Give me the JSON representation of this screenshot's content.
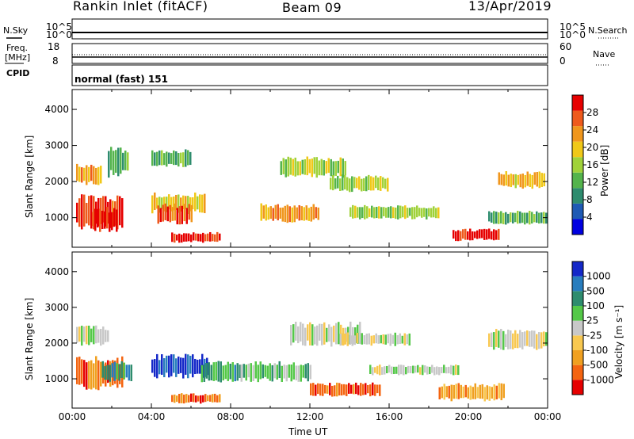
{
  "header": {
    "site": "Rankin Inlet (fitACF)",
    "beam": "Beam 09",
    "date": "13/Apr/2019"
  },
  "nsky_panel": {
    "label_left": "N.Sky",
    "label_right": "N.Search",
    "y_top": "10^5",
    "y_bottom": "10^0",
    "y_top_right": "10^5",
    "y_bottom_right": "10^0"
  },
  "freq_panel": {
    "label_left_1": "Freq.",
    "label_left_2": "[MHz]",
    "label_right": "Nave",
    "y_top": "18",
    "y_bottom": "8",
    "y_top_right": "60",
    "y_bottom_right": "0"
  },
  "cpid": {
    "label": "CPID",
    "mode": "normal (fast) 151"
  },
  "colors": {
    "power": [
      "#0000e0",
      "#1e5ab4",
      "#2e8c6e",
      "#54b44c",
      "#a0d23a",
      "#f0c818",
      "#f0961c",
      "#ee5a1c",
      "#e60000"
    ],
    "velocity": [
      "#e60000",
      "#f46410",
      "#f0a020",
      "#f8c850",
      "#c8c8c8",
      "#54c848",
      "#2e8c6e",
      "#287dbe",
      "#1428c8"
    ]
  },
  "chart_data": [
    {
      "type": "heatmap",
      "name": "power",
      "ylabel": "Slant Range [km]",
      "ylim": [
        180,
        4550
      ],
      "yticks": [
        "1000",
        "2000",
        "3000",
        "4000"
      ],
      "xlim": [
        0,
        24
      ],
      "colorbar": {
        "label": "Power [dB]",
        "ticks": [
          "4",
          "8",
          "12",
          "16",
          "20",
          "24",
          "28"
        ],
        "range": [
          0,
          32
        ]
      },
      "regions": [
        {
          "t0": 0.2,
          "t1": 1.5,
          "r0": 1900,
          "r1": 2500,
          "level": 6
        },
        {
          "t0": 0.2,
          "t1": 2.6,
          "r0": 650,
          "r1": 1650,
          "level": 7
        },
        {
          "t0": 1.0,
          "t1": 2.3,
          "r0": 600,
          "r1": 1300,
          "level": 8
        },
        {
          "t0": 1.8,
          "t1": 2.8,
          "r0": 2100,
          "r1": 3000,
          "level": 3
        },
        {
          "t0": 4.0,
          "t1": 6.7,
          "r0": 1100,
          "r1": 1700,
          "level": 5
        },
        {
          "t0": 4.3,
          "t1": 6.0,
          "r0": 800,
          "r1": 1400,
          "level": 7
        },
        {
          "t0": 4.0,
          "t1": 6.0,
          "r0": 2400,
          "r1": 2900,
          "level": 3
        },
        {
          "t0": 5.0,
          "t1": 7.5,
          "r0": 300,
          "r1": 600,
          "level": 8
        },
        {
          "t0": 9.5,
          "t1": 12.5,
          "r0": 850,
          "r1": 1400,
          "level": 6
        },
        {
          "t0": 10.5,
          "t1": 13.8,
          "r0": 2100,
          "r1": 2700,
          "level": 4
        },
        {
          "t0": 13.0,
          "t1": 16.0,
          "r0": 1700,
          "r1": 2200,
          "level": 4
        },
        {
          "t0": 14.0,
          "t1": 18.5,
          "r0": 950,
          "r1": 1350,
          "level": 4
        },
        {
          "t0": 19.2,
          "t1": 21.5,
          "r0": 350,
          "r1": 700,
          "level": 8
        },
        {
          "t0": 21.5,
          "t1": 23.9,
          "r0": 1800,
          "r1": 2300,
          "level": 5
        },
        {
          "t0": 21.0,
          "t1": 23.9,
          "r0": 800,
          "r1": 1200,
          "level": 3
        }
      ]
    },
    {
      "type": "heatmap",
      "name": "velocity",
      "ylabel": "Slant Range [km]",
      "xlabel": "Time UT",
      "ylim": [
        180,
        4550
      ],
      "yticks": [
        "1000",
        "2000",
        "3000",
        "4000"
      ],
      "xticks": [
        "00:00",
        "04:00",
        "08:00",
        "12:00",
        "16:00",
        "20:00",
        "00:00"
      ],
      "xlim": [
        0,
        24
      ],
      "colorbar": {
        "label": "Velocity [m s⁻¹]",
        "ticks": [
          "1000",
          "500",
          "100",
          "25",
          "-25",
          "-100",
          "-500",
          "-1000"
        ]
      },
      "regions": [
        {
          "t0": 0.2,
          "t1": 1.8,
          "r0": 1900,
          "r1": 2500,
          "level": 4
        },
        {
          "t0": 0.2,
          "t1": 2.6,
          "r0": 650,
          "r1": 1650,
          "level": 1
        },
        {
          "t0": 1.5,
          "t1": 3.0,
          "r0": 900,
          "r1": 1500,
          "level": 6
        },
        {
          "t0": 4.0,
          "t1": 6.8,
          "r0": 1000,
          "r1": 1700,
          "level": 8
        },
        {
          "t0": 6.5,
          "t1": 8.5,
          "r0": 900,
          "r1": 1500,
          "level": 6
        },
        {
          "t0": 8.5,
          "t1": 12.0,
          "r0": 900,
          "r1": 1500,
          "level": 5
        },
        {
          "t0": 11.0,
          "t1": 14.5,
          "r0": 1900,
          "r1": 2600,
          "level": 4
        },
        {
          "t0": 13.5,
          "t1": 17.0,
          "r0": 1900,
          "r1": 2300,
          "level": 4
        },
        {
          "t0": 12.0,
          "t1": 15.5,
          "r0": 500,
          "r1": 900,
          "level": 1
        },
        {
          "t0": 15.0,
          "t1": 19.5,
          "r0": 1100,
          "r1": 1400,
          "level": 4
        },
        {
          "t0": 18.5,
          "t1": 21.8,
          "r0": 350,
          "r1": 900,
          "level": 2
        },
        {
          "t0": 21.0,
          "t1": 23.9,
          "r0": 1800,
          "r1": 2400,
          "level": 4
        },
        {
          "t0": 5.0,
          "t1": 7.5,
          "r0": 300,
          "r1": 600,
          "level": 1
        }
      ]
    }
  ]
}
